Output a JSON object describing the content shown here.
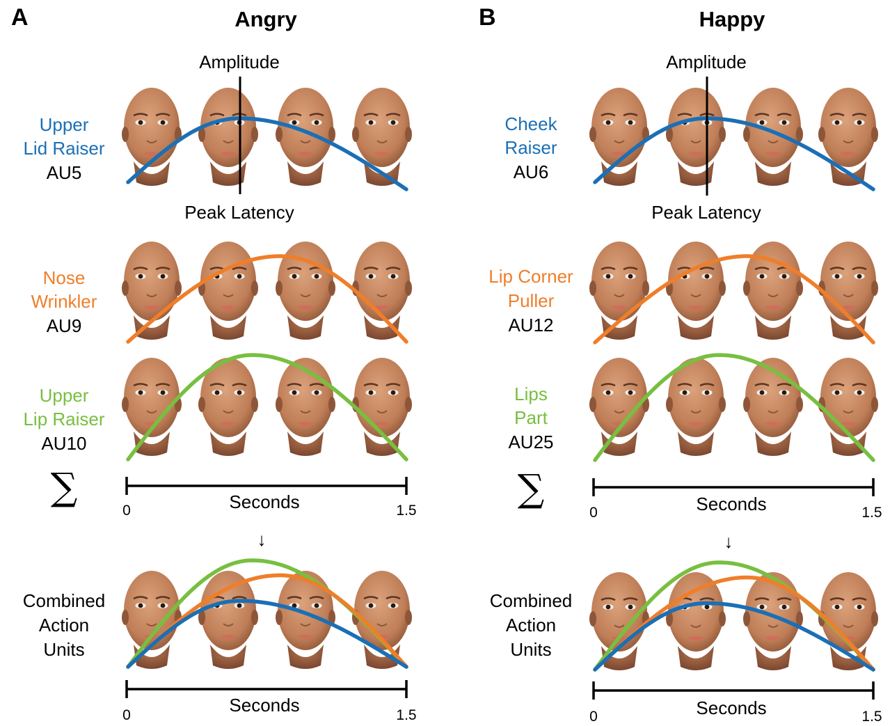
{
  "colors": {
    "blue": "#1b6fb5",
    "orange": "#ef7e2a",
    "green": "#78bf40",
    "skin": "#c88a63",
    "skin_dark": "#8e5638",
    "lips": "#cf6d5a",
    "axis": "#000000"
  },
  "panels": [
    {
      "letter": "A",
      "title": "Angry",
      "amplitude_label": "Amplitude",
      "peak_latency_label": "Peak Latency",
      "rows": [
        {
          "name_line1": "Upper",
          "name_line2": "Lid Raiser",
          "code": "AU5",
          "color": "blue",
          "curve": {
            "start": 0.1,
            "peak": 1.0,
            "peak_time": 0.6,
            "end": 0.0
          }
        },
        {
          "name_line1": "Nose",
          "name_line2": "Wrinkler",
          "code": "AU9",
          "color": "orange",
          "curve": {
            "start": 0.0,
            "peak": 1.0,
            "peak_time": 0.82,
            "end": 0.0
          }
        },
        {
          "name_line1": "Upper",
          "name_line2": "Lip Raiser",
          "code": "AU10",
          "color": "green",
          "curve": {
            "start": 0.0,
            "peak": 1.0,
            "peak_time": 0.67,
            "end": 0.0
          }
        }
      ],
      "sum_symbol": "∑",
      "axis": {
        "label": "Seconds",
        "min_label": "0",
        "max_label": "1.5",
        "min": 0,
        "max": 1.5
      },
      "arrow": "↓",
      "combined": {
        "line1": "Combined",
        "line2": "Action",
        "line3": "Units"
      },
      "combined_curves": [
        {
          "color": "green",
          "start": 0.0,
          "peak": 1.0,
          "peak_time": 0.67,
          "end": 0.0
        },
        {
          "color": "orange",
          "start": 0.0,
          "peak": 0.86,
          "peak_time": 0.82,
          "end": 0.0
        },
        {
          "color": "blue",
          "start": 0.0,
          "peak": 0.62,
          "peak_time": 0.6,
          "end": 0.0
        }
      ],
      "bottom_axis": {
        "label": "Seconds",
        "min_label": "0",
        "max_label": "1.5"
      }
    },
    {
      "letter": "B",
      "title": "Happy",
      "amplitude_label": "Amplitude",
      "peak_latency_label": "Peak Latency",
      "rows": [
        {
          "name_line1": "Cheek",
          "name_line2": "Raiser",
          "code": "AU6",
          "color": "blue",
          "curve": {
            "start": 0.1,
            "peak": 1.0,
            "peak_time": 0.6,
            "end": 0.0
          }
        },
        {
          "name_line1": "Lip Corner",
          "name_line2": "Puller",
          "code": "AU12",
          "color": "orange",
          "curve": {
            "start": 0.0,
            "peak": 1.0,
            "peak_time": 0.82,
            "end": 0.0
          }
        },
        {
          "name_line1": "Lips",
          "name_line2": "Part",
          "code": "AU25",
          "color": "green",
          "curve": {
            "start": 0.0,
            "peak": 1.0,
            "peak_time": 0.67,
            "end": 0.0
          }
        }
      ],
      "sum_symbol": "∑",
      "axis": {
        "label": "Seconds",
        "min_label": "0",
        "max_label": "1.5",
        "min": 0,
        "max": 1.5
      },
      "arrow": "↓",
      "combined": {
        "line1": "Combined",
        "line2": "Action",
        "line3": "Units"
      },
      "combined_curves": [
        {
          "color": "green",
          "start": 0.0,
          "peak": 1.0,
          "peak_time": 0.67,
          "end": 0.0
        },
        {
          "color": "orange",
          "start": 0.0,
          "peak": 0.86,
          "peak_time": 0.82,
          "end": 0.0
        },
        {
          "color": "blue",
          "start": 0.0,
          "peak": 0.62,
          "peak_time": 0.6,
          "end": 0.0
        }
      ],
      "bottom_axis": {
        "label": "Seconds",
        "min_label": "0",
        "max_label": "1.5"
      }
    }
  ]
}
